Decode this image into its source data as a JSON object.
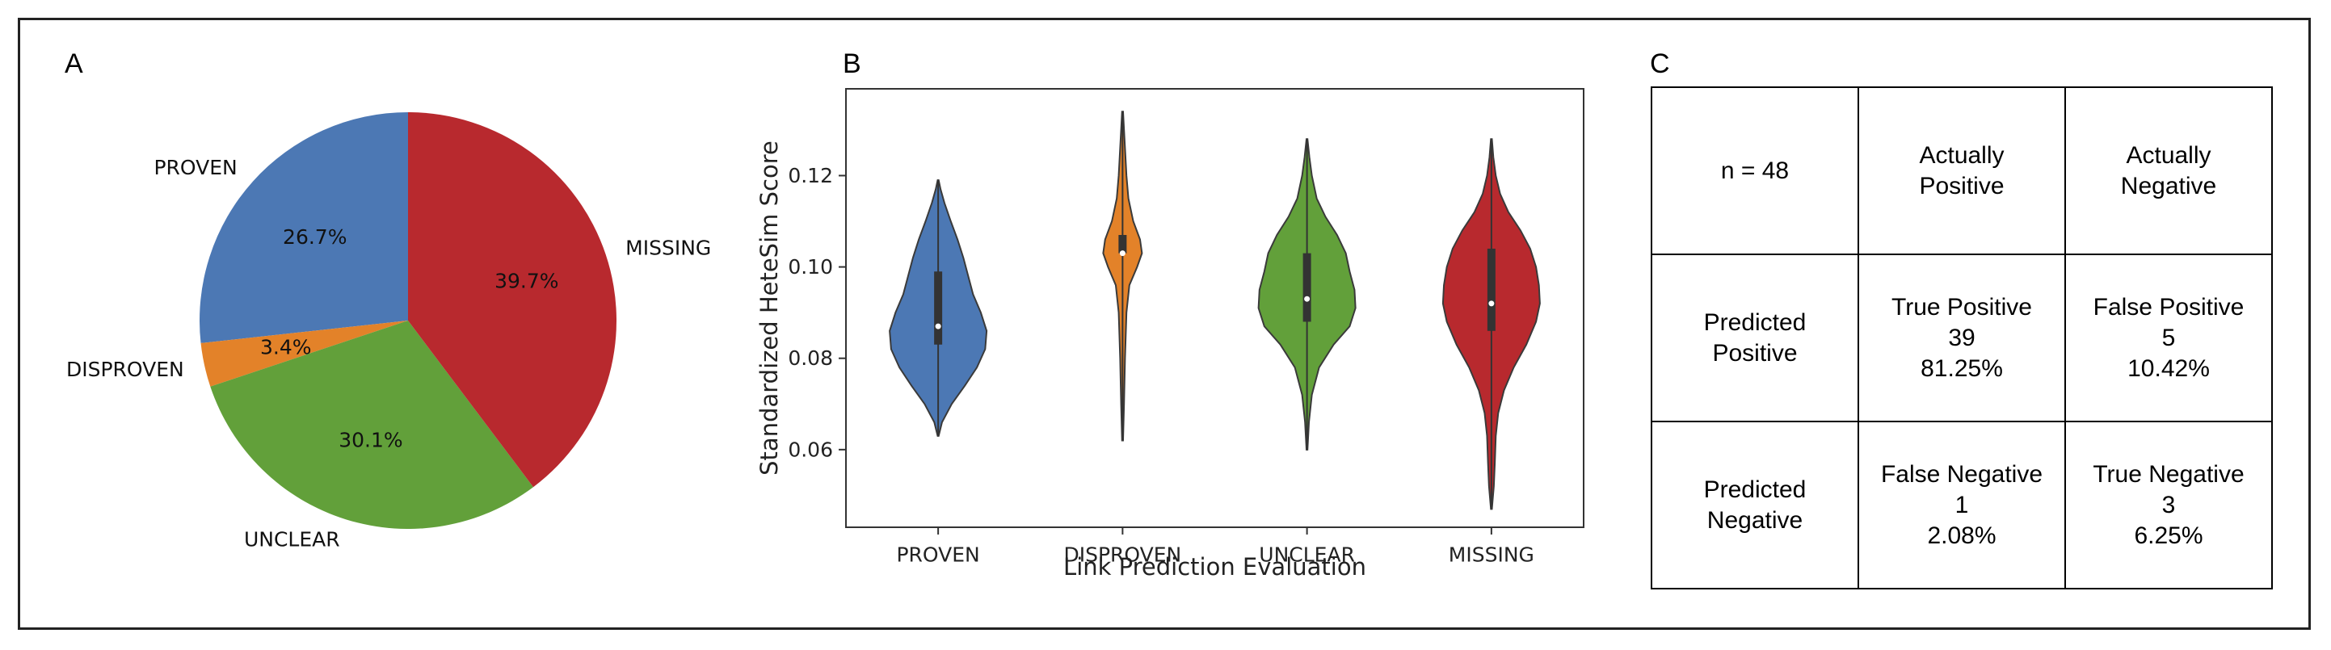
{
  "panels": {
    "a_label": "A",
    "b_label": "B",
    "c_label": "C"
  },
  "chart_data": [
    {
      "type": "pie",
      "panel": "A",
      "categories": [
        "PROVEN",
        "DISPROVEN",
        "UNCLEAR",
        "MISSING"
      ],
      "values": [
        26.7,
        3.4,
        30.1,
        39.7
      ],
      "value_labels": [
        "26.7%",
        "3.4%",
        "30.1%",
        "39.7%"
      ],
      "colors": [
        "#4c78b4",
        "#e38229",
        "#62a03a",
        "#b8292e"
      ],
      "start": "top",
      "direction": "counterclockwise"
    },
    {
      "type": "violin",
      "panel": "B",
      "xlabel": "Link Prediction Evaluation",
      "ylabel": "Standardized HeteSim Score",
      "ylim": [
        0.043,
        0.139
      ],
      "yticks": [
        0.06,
        0.08,
        0.1,
        0.12
      ],
      "ytick_labels": [
        "0.06",
        "0.08",
        "0.10",
        "0.12"
      ],
      "categories": [
        "PROVEN",
        "DISPROVEN",
        "UNCLEAR",
        "MISSING"
      ],
      "colors": [
        "#4c78b4",
        "#e38229",
        "#62a03a",
        "#b8292e"
      ],
      "series": [
        {
          "name": "PROVEN",
          "min": 0.063,
          "q1": 0.083,
          "median": 0.087,
          "q3": 0.099,
          "max": 0.119,
          "density": [
            [
              0.063,
              0.01
            ],
            [
              0.066,
              0.08
            ],
            [
              0.07,
              0.28
            ],
            [
              0.074,
              0.55
            ],
            [
              0.078,
              0.8
            ],
            [
              0.082,
              0.97
            ],
            [
              0.086,
              1.0
            ],
            [
              0.09,
              0.88
            ],
            [
              0.094,
              0.72
            ],
            [
              0.098,
              0.62
            ],
            [
              0.102,
              0.52
            ],
            [
              0.106,
              0.4
            ],
            [
              0.11,
              0.26
            ],
            [
              0.114,
              0.13
            ],
            [
              0.117,
              0.05
            ],
            [
              0.119,
              0.01
            ]
          ]
        },
        {
          "name": "DISPROVEN",
          "min": 0.062,
          "q1": 0.103,
          "median": 0.103,
          "q3": 0.107,
          "max": 0.134,
          "density": [
            [
              0.062,
              0.01
            ],
            [
              0.07,
              0.03
            ],
            [
              0.08,
              0.05
            ],
            [
              0.09,
              0.08
            ],
            [
              0.096,
              0.14
            ],
            [
              0.1,
              0.3
            ],
            [
              0.103,
              0.4
            ],
            [
              0.106,
              0.36
            ],
            [
              0.11,
              0.22
            ],
            [
              0.115,
              0.12
            ],
            [
              0.12,
              0.08
            ],
            [
              0.126,
              0.05
            ],
            [
              0.13,
              0.03
            ],
            [
              0.134,
              0.01
            ]
          ]
        },
        {
          "name": "UNCLEAR",
          "min": 0.06,
          "q1": 0.088,
          "median": 0.093,
          "q3": 0.103,
          "max": 0.128,
          "density": [
            [
              0.06,
              0.01
            ],
            [
              0.066,
              0.04
            ],
            [
              0.072,
              0.1
            ],
            [
              0.078,
              0.25
            ],
            [
              0.083,
              0.55
            ],
            [
              0.087,
              0.88
            ],
            [
              0.091,
              1.0
            ],
            [
              0.095,
              0.98
            ],
            [
              0.099,
              0.88
            ],
            [
              0.103,
              0.8
            ],
            [
              0.107,
              0.62
            ],
            [
              0.111,
              0.38
            ],
            [
              0.115,
              0.2
            ],
            [
              0.12,
              0.1
            ],
            [
              0.124,
              0.05
            ],
            [
              0.128,
              0.01
            ]
          ]
        },
        {
          "name": "MISSING",
          "min": 0.047,
          "q1": 0.086,
          "median": 0.092,
          "q3": 0.104,
          "max": 0.128,
          "density": [
            [
              0.047,
              0.01
            ],
            [
              0.052,
              0.05
            ],
            [
              0.057,
              0.07
            ],
            [
              0.063,
              0.09
            ],
            [
              0.068,
              0.14
            ],
            [
              0.073,
              0.26
            ],
            [
              0.078,
              0.46
            ],
            [
              0.083,
              0.72
            ],
            [
              0.088,
              0.92
            ],
            [
              0.092,
              1.0
            ],
            [
              0.096,
              0.98
            ],
            [
              0.1,
              0.92
            ],
            [
              0.104,
              0.8
            ],
            [
              0.108,
              0.6
            ],
            [
              0.112,
              0.35
            ],
            [
              0.116,
              0.18
            ],
            [
              0.12,
              0.09
            ],
            [
              0.124,
              0.04
            ],
            [
              0.128,
              0.01
            ]
          ]
        }
      ]
    },
    {
      "type": "table",
      "panel": "C",
      "rows": [
        [
          [
            "n = 48"
          ],
          [
            "Actually",
            "Positive"
          ],
          [
            "Actually",
            "Negative"
          ]
        ],
        [
          [
            "Predicted",
            "Positive"
          ],
          [
            "True Positive",
            "39",
            "81.25%"
          ],
          [
            "False Positive",
            "5",
            "10.42%"
          ]
        ],
        [
          [
            "Predicted",
            "Negative"
          ],
          [
            "False Negative",
            "1",
            "2.08%"
          ],
          [
            "True Negative",
            "3",
            "6.25%"
          ]
        ]
      ]
    }
  ]
}
